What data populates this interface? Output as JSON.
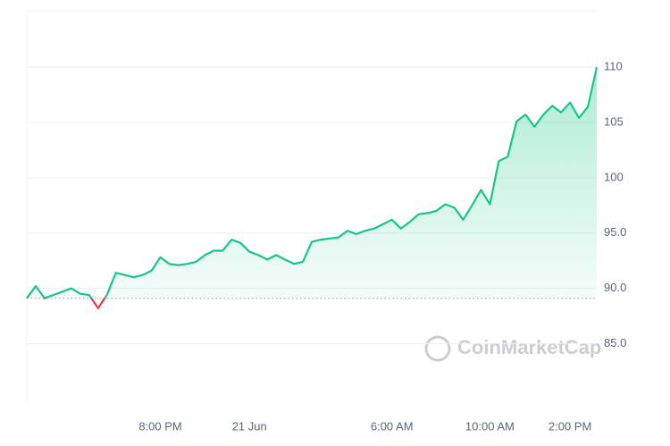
{
  "chart_data": {
    "type": "line",
    "watermark": "CoinMarketCap",
    "categories": [
      null,
      null,
      null,
      null,
      null,
      null,
      null,
      null,
      null,
      null,
      null,
      null,
      null,
      null,
      null,
      "8:00 PM",
      null,
      null,
      null,
      null,
      null,
      null,
      null,
      null,
      null,
      "21 Jun",
      null,
      null,
      null,
      null,
      null,
      null,
      null,
      null,
      null,
      null,
      null,
      null,
      null,
      null,
      null,
      "6:00 AM",
      null,
      null,
      null,
      null,
      null,
      null,
      null,
      null,
      null,
      null,
      "10:00 AM",
      null,
      null,
      null,
      null,
      null,
      null,
      null,
      null,
      "2:00 PM",
      null,
      null,
      null
    ],
    "series": [
      {
        "color": "#16c784",
        "below_color": "#ea3943",
        "values": [
          89.1,
          90.2,
          89.1,
          89.4,
          89.7,
          90.0,
          89.5,
          89.4,
          88.2,
          89.4,
          91.4,
          91.2,
          91.0,
          91.2,
          91.6,
          92.8,
          92.2,
          92.1,
          92.2,
          92.4,
          93.0,
          93.4,
          93.4,
          94.4,
          94.1,
          93.3,
          93.0,
          92.6,
          93.0,
          92.6,
          92.2,
          92.4,
          94.2,
          94.4,
          94.5,
          94.6,
          95.2,
          94.9,
          95.2,
          95.4,
          95.8,
          96.2,
          95.4,
          96.0,
          96.7,
          96.8,
          97.0,
          97.6,
          97.3,
          96.2,
          97.5,
          98.9,
          97.6,
          101.5,
          101.9,
          105.1,
          105.7,
          104.6,
          105.7,
          106.5,
          105.9,
          106.8,
          105.4,
          106.4,
          110.0
        ]
      }
    ],
    "baseline": 89.1,
    "ylim": [
      79.7,
      115.1
    ],
    "yticks": [
      {
        "value": 85,
        "label": "85.0"
      },
      {
        "value": 90,
        "label": "90.0"
      },
      {
        "value": 95,
        "label": "95.0"
      },
      100,
      105,
      110
    ],
    "grid": true
  }
}
